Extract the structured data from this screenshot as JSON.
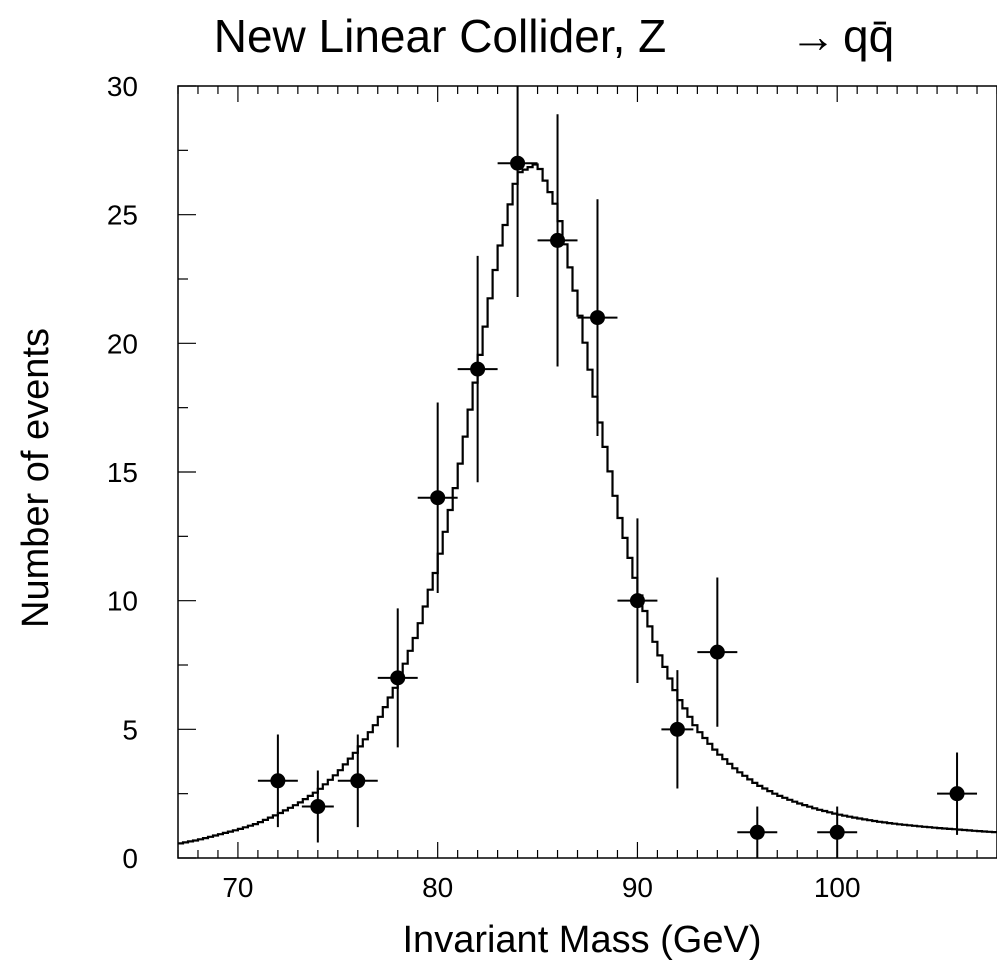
{
  "chart_data": {
    "type": "scatter",
    "title": "New Linear Collider, Z",
    "title_arrow": "→",
    "title_suffix": "qq̄",
    "xlabel": "Invariant Mass (GeV)",
    "ylabel": "Number of events",
    "xlim": [
      67,
      108
    ],
    "ylim": [
      0,
      30
    ],
    "x_ticks": [
      70,
      80,
      90,
      100
    ],
    "y_ticks": [
      0,
      5,
      10,
      15,
      20,
      25,
      30
    ],
    "grid": false,
    "legend": "none",
    "series": [
      {
        "kind": "data_points_with_errors",
        "x": [
          72,
          74,
          76,
          78,
          80,
          82,
          84,
          86,
          88,
          90,
          92,
          94,
          96,
          100,
          106
        ],
        "y": [
          3,
          2,
          3,
          7,
          14,
          19,
          27,
          24,
          21,
          10,
          5,
          8,
          1,
          1,
          2.5
        ],
        "x_err": [
          1,
          0.8,
          1,
          1,
          1,
          1,
          1,
          1,
          1,
          1,
          0.8,
          1,
          1,
          1,
          1
        ],
        "y_err_low": [
          1.8,
          1.4,
          1.8,
          2.7,
          3.7,
          4.4,
          5.2,
          4.9,
          4.6,
          3.2,
          2.3,
          2.9,
          1,
          1,
          1.6
        ],
        "y_err_high": [
          1.8,
          1.4,
          1.8,
          2.7,
          3.7,
          4.4,
          3,
          4.9,
          4.6,
          3.2,
          2.3,
          2.9,
          1,
          1,
          1.6
        ]
      },
      {
        "kind": "fit_histogram",
        "peak_x": 84.7,
        "peak_y": 27.1,
        "x": [
          67,
          68,
          69,
          70,
          71,
          72,
          73,
          74,
          75,
          76,
          77,
          78,
          79,
          80,
          81,
          82,
          83,
          84,
          85,
          86,
          87,
          88,
          89,
          90,
          91,
          92,
          93,
          94,
          95,
          96,
          97,
          98,
          99,
          100,
          101,
          102,
          103,
          104,
          105,
          106,
          107,
          108
        ],
        "y": [
          0.55,
          0.7,
          0.9,
          1.1,
          1.35,
          1.7,
          2.1,
          2.6,
          3.3,
          4.2,
          5.3,
          6.8,
          8.8,
          11.4,
          14.8,
          19.0,
          23.4,
          26.6,
          27.0,
          25.2,
          21.6,
          17.4,
          13.6,
          10.5,
          8.1,
          6.3,
          5.0,
          4.1,
          3.4,
          2.85,
          2.45,
          2.15,
          1.9,
          1.7,
          1.55,
          1.42,
          1.32,
          1.24,
          1.17,
          1.11,
          1.05,
          1.0
        ]
      }
    ]
  }
}
